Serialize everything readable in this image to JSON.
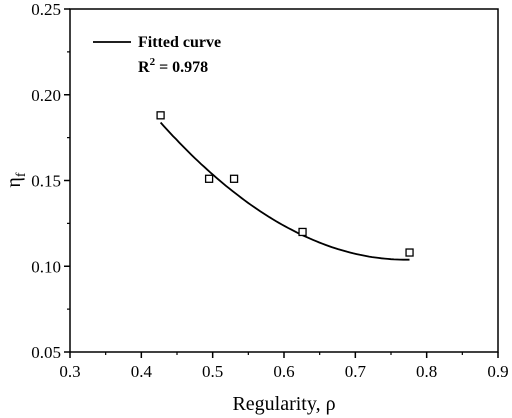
{
  "chart_data": {
    "type": "scatter",
    "xlabel": "Regularity, ρ",
    "ylabel": {
      "main": "η",
      "sub": "f"
    },
    "xlim": [
      0.3,
      0.9
    ],
    "ylim": [
      0.05,
      0.25
    ],
    "xticks": [
      "0.3",
      "0.4",
      "0.5",
      "0.6",
      "0.7",
      "0.8",
      "0.9"
    ],
    "yticks": [
      "0.05",
      "0.10",
      "0.15",
      "0.20",
      "0.25"
    ],
    "grid": false,
    "legend": {
      "placement": "top-left",
      "entry": "Fitted curve",
      "r2_main": "R",
      "r2_sup": "2",
      "r2_value": " = 0.978"
    },
    "series": [
      {
        "marker": "open-square",
        "x": [
          0.427,
          0.495,
          0.53,
          0.626,
          0.776
        ],
        "y": [
          0.188,
          0.151,
          0.151,
          0.12,
          0.108
        ]
      }
    ],
    "fit": {
      "type": "quadratic",
      "x_range": [
        0.427,
        0.776
      ],
      "coefficients": [
        0.505,
        -1.04,
        0.674
      ]
    }
  }
}
